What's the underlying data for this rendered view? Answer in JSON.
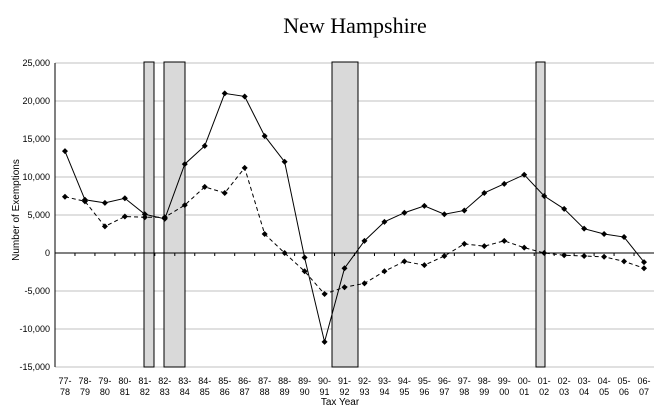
{
  "chart_data": {
    "type": "line",
    "title": "New Hampshire",
    "y_label": "Number of Exemptions",
    "x_label": "Tax Year",
    "categories": [
      "77-\n78",
      "78-\n79",
      "79-\n80",
      "80-\n81",
      "81-\n82",
      "82-\n83",
      "83-\n84",
      "84-\n85",
      "85-\n86",
      "86-\n87",
      "87-\n88",
      "88-\n89",
      "89-\n90",
      "90-\n91",
      "91-\n92",
      "92-\n93",
      "93-\n94",
      "94-\n95",
      "95-\n96",
      "96-\n97",
      "97-\n98",
      "98-\n99",
      "99-\n00",
      "00-\n01",
      "01-\n02",
      "02-\n03",
      "03-\n04",
      "04-\n05",
      "05-\n06",
      "06-\n07"
    ],
    "series": [
      {
        "color": "#000000",
        "dashed": false,
        "values": [
          13400,
          7000,
          6600,
          7200,
          5100,
          4500,
          11700,
          14100,
          21000,
          20600,
          15400,
          12000,
          -600,
          -11700,
          -2000,
          1600,
          4100,
          5300,
          6200,
          5100,
          5600,
          7900,
          9100,
          10300,
          7500,
          5800,
          3200,
          2500,
          2100,
          -1200
        ]
      },
      {
        "color": "#000000",
        "dashed": true,
        "values": [
          7400,
          6800,
          3500,
          4800,
          4700,
          4700,
          6300,
          8700,
          7900,
          11200,
          2500,
          0,
          -2400,
          -5400,
          -4500,
          -4000,
          -2400,
          -1100,
          -1600,
          -400,
          1200,
          900,
          1600,
          700,
          0,
          -300,
          -400,
          -500,
          -1100,
          -2000
        ]
      }
    ],
    "ylim": [
      -15000,
      25000
    ],
    "yticks": [
      {
        "value": -15000,
        "label": "-15,000"
      },
      {
        "value": -10000,
        "label": "-10,000"
      },
      {
        "value": -5000,
        "label": "-5,000"
      },
      0,
      {
        "value": 5000,
        "label": "5,000"
      },
      {
        "value": 10000,
        "label": "10,000"
      },
      {
        "value": 15000,
        "label": "15,000"
      },
      {
        "value": 20000,
        "label": "20,000"
      },
      {
        "value": 25000,
        "label": "25,000"
      }
    ],
    "grid": true
  }
}
